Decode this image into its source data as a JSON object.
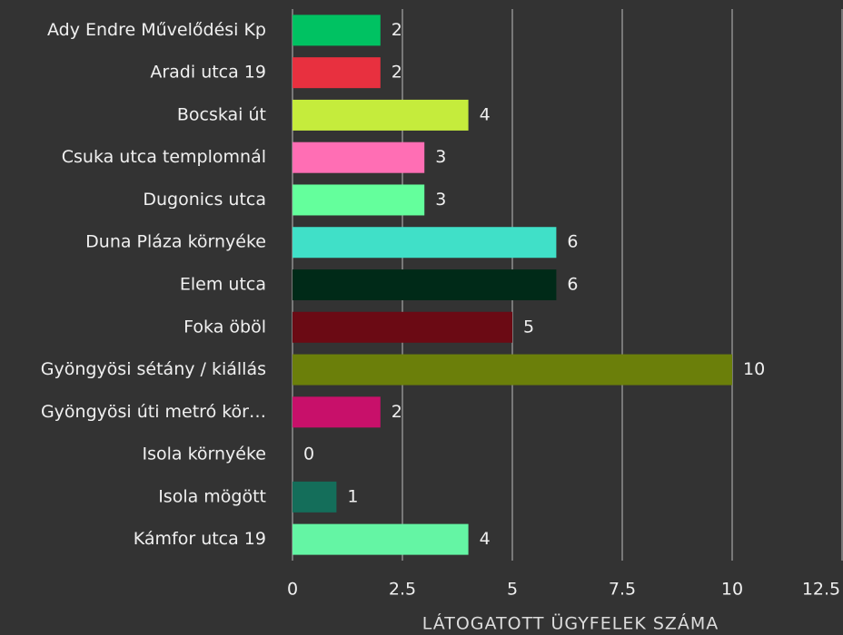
{
  "chart_data": {
    "type": "bar",
    "orientation": "horizontal",
    "x_label": "LÁTOGATOTT ÜGYFELEK SZÁMA",
    "categories": [
      "Ady Endre Művelődési Kp",
      "Aradi utca 19",
      "Bocskai út",
      "Csuka utca templomnál",
      "Dugonics utca",
      "Duna Pláza környéke",
      "Elem utca",
      "Foka öböl",
      "Gyöngyösi sétány / kiállás",
      "Gyöngyösi úti metró kör…",
      "Isola környéke",
      "Isola mögött",
      "Kámfor utca 19"
    ],
    "values": [
      2,
      2,
      4,
      3,
      3,
      6,
      6,
      5,
      10,
      2,
      0,
      1,
      4
    ],
    "colors": [
      "#00c262",
      "#e8303f",
      "#c5ec3c",
      "#ff6eb4",
      "#64ff9c",
      "#40e0c8",
      "#002a18",
      "#6b0a14",
      "#6b7f0a",
      "#c8106a",
      "#3d9970",
      "#146e5a",
      "#64f5a4"
    ],
    "xlim": [
      0,
      12.5
    ],
    "xticks": [
      0,
      2.5,
      5,
      7.5,
      10,
      12.5
    ],
    "grid": true
  }
}
